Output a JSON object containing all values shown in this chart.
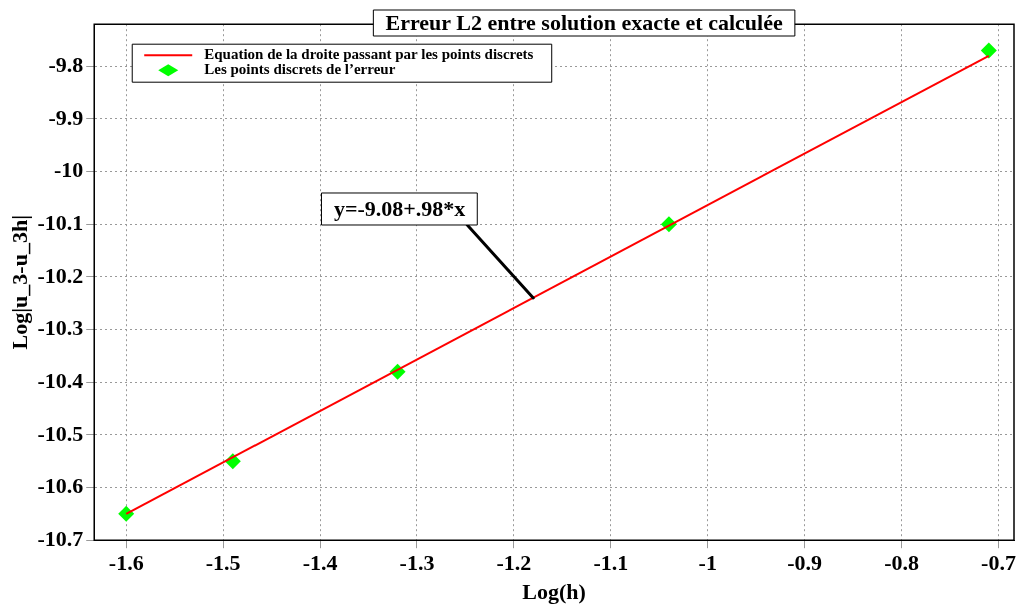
{
  "chart_data": {
    "type": "scatter",
    "title": "Erreur L2 entre solution exacte et calculée",
    "xlabel": "Log(h)",
    "ylabel": "Log|u_3-u_3h|",
    "xlim": [
      -1.633,
      -0.684
    ],
    "xticks": [
      -1.6,
      -1.5,
      -1.4,
      -1.3,
      -1.2,
      -1.1,
      -1,
      -0.9,
      -0.8,
      -0.7
    ],
    "ylim": [
      -10.7,
      -9.72
    ],
    "yticks": [
      -10.7,
      -10.6,
      -10.5,
      -10.4,
      -10.3,
      -10.2,
      -10.1,
      -10,
      -9.9,
      -9.8
    ],
    "grid": true,
    "legend": "top left",
    "series": [
      {
        "name": "Equation de la droite passant par les points discrets",
        "type": "line",
        "color": "#ff0000",
        "x": [
          -1.6,
          -0.71
        ],
        "values": [
          -10.65,
          -9.78
        ],
        "line_style": "solid"
      },
      {
        "name": "Les points discrets de l’erreur",
        "marker": "diamond",
        "color": "#00ff00",
        "x": [
          -1.6,
          -1.49,
          -1.32,
          -1.04,
          -0.71
        ],
        "values": [
          -10.65,
          -10.55,
          -10.38,
          -10.1,
          -9.77
        ]
      }
    ],
    "annotations": [
      {
        "text": "y=-9.08+.98*x",
        "x": -1.18,
        "y": -10.24
      }
    ]
  }
}
